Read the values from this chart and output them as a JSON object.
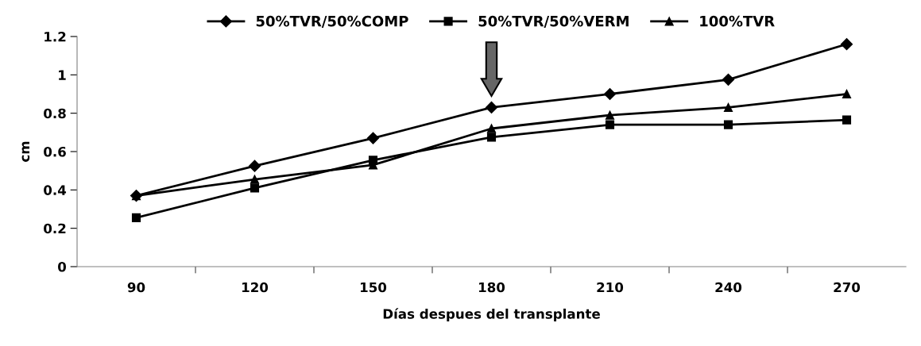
{
  "chart_data": {
    "type": "line",
    "xlabel": "Días despues del transplante",
    "ylabel": "cm",
    "categories": [
      "90",
      "120",
      "150",
      "180",
      "210",
      "240",
      "270"
    ],
    "series": [
      {
        "name": "50%TVR/50%COMP",
        "color": "#000000",
        "marker": "diamond",
        "values": [
          0.37,
          0.525,
          0.67,
          0.83,
          0.9,
          0.975,
          1.16
        ]
      },
      {
        "name": "50%TVR/50%VERM",
        "color": "#000000",
        "marker": "square",
        "values": [
          0.255,
          0.41,
          0.555,
          0.675,
          0.74,
          0.74,
          0.765
        ]
      },
      {
        "name": "100%TVR",
        "color": "#000000",
        "marker": "triangle",
        "values": [
          0.37,
          0.455,
          0.53,
          0.72,
          0.79,
          0.83,
          0.9
        ]
      }
    ],
    "ylim": [
      0,
      1.2
    ],
    "yticks": [
      0,
      0.2,
      0.4,
      0.6,
      0.8,
      1,
      1.2
    ],
    "grid": false,
    "legend": "top",
    "line_style": "solid"
  }
}
